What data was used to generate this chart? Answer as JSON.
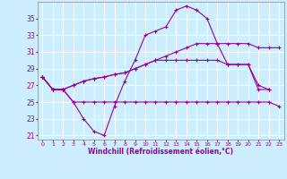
{
  "xlabel": "Windchill (Refroidissement éolien,°C)",
  "background_color": "#cceeff",
  "grid_color": "#ffffff",
  "line_color": "#990099",
  "x_hours": [
    0,
    1,
    2,
    3,
    4,
    5,
    6,
    7,
    8,
    9,
    10,
    11,
    12,
    13,
    14,
    15,
    16,
    17,
    18,
    19,
    20,
    21,
    22,
    23
  ],
  "ylim": [
    20.5,
    37.0
  ],
  "yticks": [
    21,
    23,
    25,
    27,
    29,
    31,
    33,
    35
  ],
  "line1": [
    28,
    26.5,
    26.5,
    25.0,
    23.0,
    21.5,
    21.0,
    24.5,
    27.5,
    30.0,
    33.0,
    33.5,
    34.0,
    36.0,
    36.5,
    36.0,
    35.0,
    32.0,
    29.5,
    29.5,
    29.5,
    26.5,
    26.5,
    null
  ],
  "line2": [
    28,
    26.5,
    26.5,
    25.0,
    25.0,
    25.0,
    25.0,
    25.0,
    25.0,
    25.0,
    25.0,
    25.0,
    25.0,
    25.0,
    25.0,
    25.0,
    25.0,
    25.0,
    25.0,
    25.0,
    25.0,
    25.0,
    25.0,
    24.5
  ],
  "line3": [
    28,
    26.5,
    26.5,
    27.0,
    27.5,
    27.8,
    28.0,
    28.3,
    28.5,
    29.0,
    29.5,
    30.0,
    30.5,
    31.0,
    31.5,
    32.0,
    32.0,
    32.0,
    32.0,
    32.0,
    32.0,
    31.5,
    31.5,
    31.5
  ],
  "line4": [
    28,
    26.5,
    26.5,
    27.0,
    27.5,
    27.8,
    28.0,
    28.3,
    28.5,
    29.0,
    29.5,
    30.0,
    30.0,
    30.0,
    30.0,
    30.0,
    30.0,
    30.0,
    29.5,
    29.5,
    29.5,
    27.0,
    26.5,
    null
  ]
}
